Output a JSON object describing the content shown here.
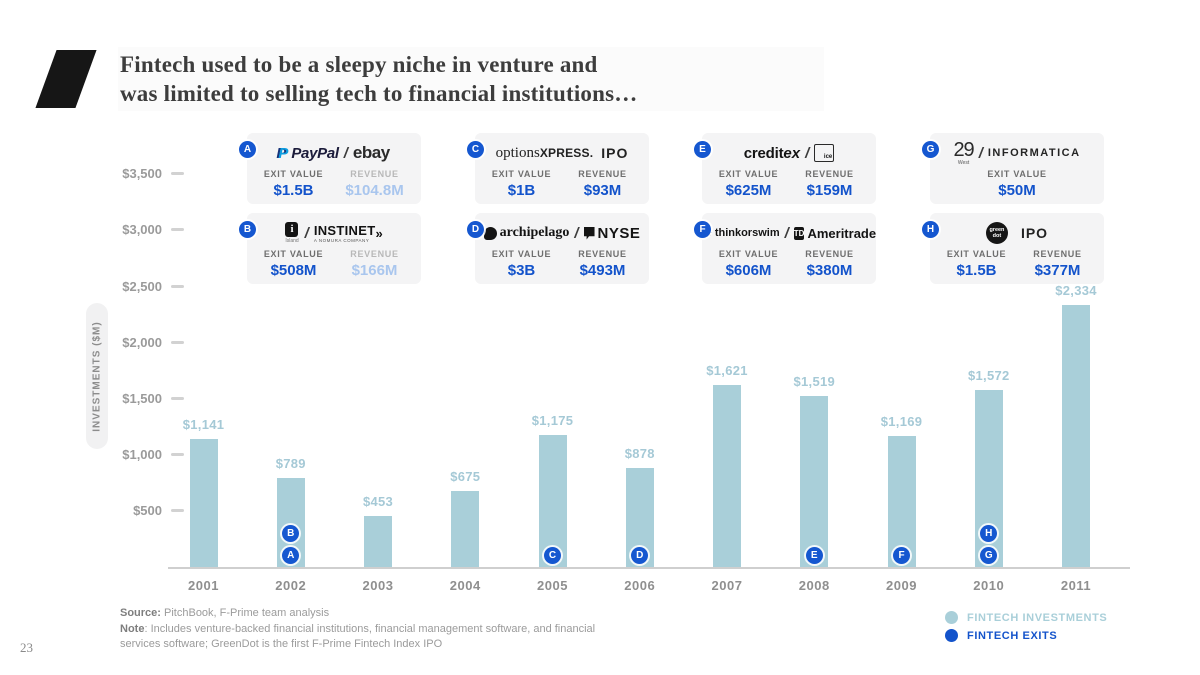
{
  "slide": {
    "title_line1": "Fintech used to be a sleepy niche in venture and",
    "title_line2": "was limited to selling tech to financial institutions…",
    "page_number": "23",
    "source_label": "Source:",
    "source_text": " PitchBook, F-Prime team analysis",
    "note_label": "Note",
    "note_text": ": Includes venture-backed financial institutions, financial management software, and financial services software; GreenDot is the first F-Prime Fintech Index IPO"
  },
  "legend": [
    {
      "label": "FINTECH INVESTMENTS",
      "color": "#a9cfd9"
    },
    {
      "label": "FINTECH EXITS",
      "color": "#1353cb"
    }
  ],
  "chart_data": {
    "type": "bar",
    "title": "Fintech venture investments by year with notable exits",
    "ylabel": "INVESTMENTS ($M)",
    "xlabel": "",
    "categories": [
      "2001",
      "2002",
      "2003",
      "2004",
      "2005",
      "2006",
      "2007",
      "2008",
      "2009",
      "2010",
      "2011"
    ],
    "values": [
      1141,
      789,
      453,
      675,
      1175,
      878,
      1621,
      1519,
      1169,
      1572,
      2334
    ],
    "value_labels": [
      "$1,141",
      "$789",
      "$453",
      "$675",
      "$1,175",
      "$878",
      "$1,621",
      "$1,519",
      "$1,169",
      "$1,572",
      "$2,334"
    ],
    "badges_by_year": [
      [],
      [
        "A",
        "B"
      ],
      [],
      [],
      [
        "C"
      ],
      [
        "D"
      ],
      [],
      [
        "E"
      ],
      [
        "F"
      ],
      [
        "G",
        "H"
      ],
      []
    ],
    "y_ticks": [
      {
        "label": "$500",
        "value": 500
      },
      {
        "label": "$1,000",
        "value": 1000
      },
      {
        "label": "$1,500",
        "value": 1500
      },
      {
        "label": "$2,000",
        "value": 2000
      },
      {
        "label": "$2,500",
        "value": 2500
      },
      {
        "label": "$3,000",
        "value": 3000
      },
      {
        "label": "$3,500",
        "value": 3500
      }
    ],
    "ylim": [
      0,
      3500
    ],
    "grid": false,
    "legend_position": "bottom-right",
    "bar_color": "#a9cfd9",
    "badge_color": "#1557d0"
  },
  "cards": {
    "exit_value_label": "EXIT VALUE",
    "revenue_label": "REVENUE",
    "items": [
      {
        "id": "A",
        "row": 0,
        "col": 0,
        "companies": "PayPal / ebay",
        "exit_value": "$1.5B",
        "revenue": "$104.8M",
        "revenue_muted": true,
        "logo": [
          {
            "cls": "pp-ic",
            "text": "P"
          },
          {
            "cls": "paypal",
            "text": "PayPal"
          },
          {
            "cls": "slash",
            "text": "/"
          },
          {
            "cls": "ebay",
            "text": "ebay"
          }
        ]
      },
      {
        "id": "B",
        "row": 1,
        "col": 0,
        "companies": "Island / Instinet",
        "exit_value": "$508M",
        "revenue": "$166M",
        "revenue_muted": true,
        "logo": [
          {
            "cls": "island",
            "text": "i",
            "sub": "Island"
          },
          {
            "cls": "slash",
            "text": "/"
          },
          {
            "cls": "instinet",
            "text": "INSTINET",
            "sub": "A NOMURA COMPANY"
          },
          {
            "cls": "inst-arrow",
            "text": "»"
          }
        ]
      },
      {
        "id": "C",
        "row": 0,
        "col": 1,
        "companies": "optionsXpress IPO",
        "exit_value": "$1B",
        "revenue": "$93M",
        "revenue_muted": false,
        "logo": [
          {
            "cls": "optx1",
            "text": "options"
          },
          {
            "cls": "optx2",
            "text": "XPRESS."
          },
          {
            "cls": "ipo",
            "text": "IPO"
          }
        ]
      },
      {
        "id": "D",
        "row": 1,
        "col": 1,
        "companies": "Archipelago / NYSE",
        "exit_value": "$3B",
        "revenue": "$493M",
        "revenue_muted": false,
        "logo": [
          {
            "cls": "arch-ic",
            "text": ""
          },
          {
            "cls": "arch",
            "text": "archipelago"
          },
          {
            "cls": "slash",
            "text": "/"
          },
          {
            "cls": "nyse-ic",
            "text": ""
          },
          {
            "cls": "nyse",
            "text": "NYSE"
          }
        ]
      },
      {
        "id": "E",
        "row": 0,
        "col": 2,
        "companies": "Creditex / ICE",
        "exit_value": "$625M",
        "revenue": "$159M",
        "revenue_muted": false,
        "logo": [
          {
            "cls": "creditex",
            "text": "credit"
          },
          {
            "cls": "creditex-ex",
            "text": "ex"
          },
          {
            "cls": "slash",
            "text": "/"
          },
          {
            "cls": "ice",
            "text": "ice"
          }
        ]
      },
      {
        "id": "F",
        "row": 1,
        "col": 2,
        "companies": "thinkorswim / TD Ameritrade",
        "exit_value": "$606M",
        "revenue": "$380M",
        "revenue_muted": false,
        "logo": [
          {
            "cls": "tos-ic",
            "text": "✳"
          },
          {
            "cls": "tos",
            "text": "thinkorswim"
          },
          {
            "cls": "slash",
            "text": "/"
          },
          {
            "cls": "td",
            "text": "TD"
          },
          {
            "cls": "ameritrade",
            "text": "Ameritrade"
          }
        ]
      },
      {
        "id": "G",
        "row": 0,
        "col": 3,
        "companies": "29West / Informatica",
        "exit_value": "$50M",
        "revenue": null,
        "revenue_muted": false,
        "logo": [
          {
            "cls": "w29",
            "text": "29",
            "sub": "West"
          },
          {
            "cls": "slash",
            "text": "/"
          },
          {
            "cls": "informatica",
            "text": "INFORMATICA"
          }
        ]
      },
      {
        "id": "H",
        "row": 1,
        "col": 3,
        "companies": "Green Dot IPO",
        "exit_value": "$1.5B",
        "revenue": "$377M",
        "revenue_muted": false,
        "logo": [
          {
            "cls": "greendot",
            "text": "green dot"
          },
          {
            "cls": "ipo",
            "text": "IPO"
          }
        ]
      }
    ]
  }
}
